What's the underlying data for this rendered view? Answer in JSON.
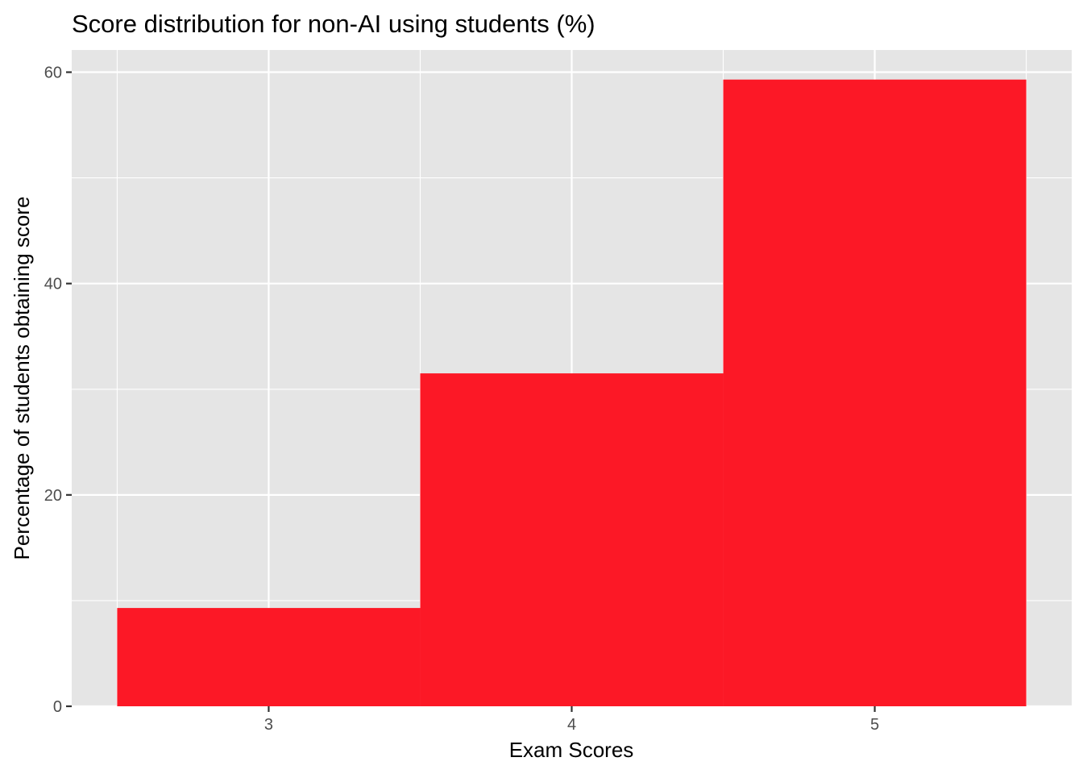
{
  "chart_data": {
    "type": "bar",
    "title": "Score distribution for non-AI using students (%)",
    "xlabel": "Exam Scores",
    "ylabel": "Percentage of students obtaining score",
    "categories": [
      3,
      4,
      5
    ],
    "values": [
      9.3,
      31.5,
      59.3
    ],
    "xlim": [
      2.35,
      5.65
    ],
    "ylim": [
      0,
      62.1
    ],
    "yticks": [
      0,
      20,
      40,
      60
    ],
    "xticks": [
      3,
      4,
      5
    ],
    "bar_color": "#FC1826",
    "panel_background": "#E5E5E5",
    "grid": true,
    "grid_color": "#FFFFFF",
    "legend": "none"
  }
}
